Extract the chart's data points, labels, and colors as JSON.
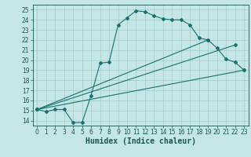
{
  "xlabel": "Humidex (Indice chaleur)",
  "xlim": [
    -0.5,
    23.5
  ],
  "ylim": [
    13.5,
    25.5
  ],
  "xticks": [
    0,
    1,
    2,
    3,
    4,
    5,
    6,
    7,
    8,
    9,
    10,
    11,
    12,
    13,
    14,
    15,
    16,
    17,
    18,
    19,
    20,
    21,
    22,
    23
  ],
  "yticks": [
    14,
    15,
    16,
    17,
    18,
    19,
    20,
    21,
    22,
    23,
    24,
    25
  ],
  "bg_color": "#c5e6e6",
  "grid_color": "#aacece",
  "line_color": "#1a7070",
  "line1_x": [
    0,
    1,
    2,
    3,
    4,
    5,
    6,
    7,
    8,
    9,
    10,
    11,
    12,
    13,
    14,
    15,
    16,
    17,
    18,
    19,
    20,
    21,
    22,
    23
  ],
  "line1_y": [
    15.1,
    14.9,
    15.1,
    15.1,
    13.8,
    13.8,
    16.5,
    19.7,
    19.8,
    23.5,
    24.2,
    24.9,
    24.8,
    24.4,
    24.1,
    24.0,
    24.0,
    23.5,
    22.2,
    22.0,
    21.2,
    20.1,
    19.8,
    19.0
  ],
  "line2_x": [
    0,
    23
  ],
  "line2_y": [
    15.1,
    19.0
  ],
  "line3_x": [
    0,
    22
  ],
  "line3_y": [
    15.1,
    21.5
  ],
  "line4_x": [
    0,
    19
  ],
  "line4_y": [
    15.1,
    22.0
  ],
  "font_color": "#1a5555",
  "tick_fontsize": 5.5,
  "label_fontsize": 7.0
}
